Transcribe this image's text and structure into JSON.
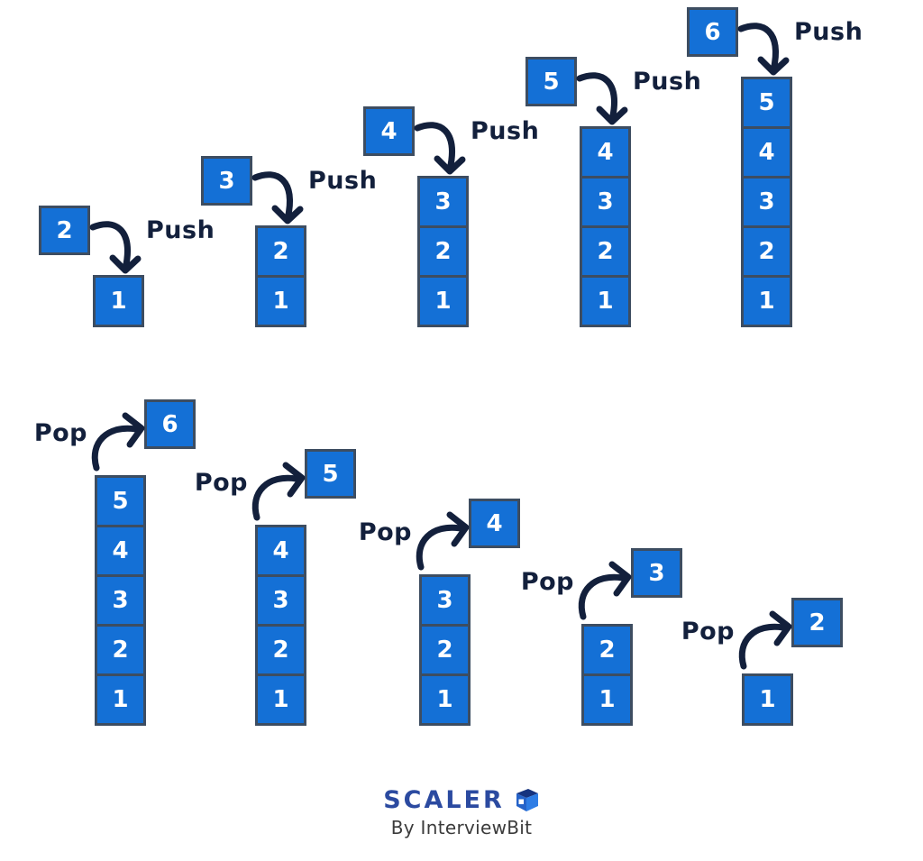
{
  "diagram_title": "stack-push-pop-operations",
  "colors": {
    "box_fill": "#1470d6",
    "box_border": "#3d4d61",
    "ink": "#13203c",
    "number_text": "#ffffff",
    "brand_blue": "#2b4aa0",
    "tagline_gray": "#3b3b3b",
    "cube_dark": "#16337e",
    "cube_bright": "#2e7de5",
    "cube_mid": "#2563c9"
  },
  "push_row": {
    "op_label": "Push",
    "groups": [
      {
        "moved": "2",
        "stack": [
          "1"
        ]
      },
      {
        "moved": "3",
        "stack": [
          "2",
          "1"
        ]
      },
      {
        "moved": "4",
        "stack": [
          "3",
          "2",
          "1"
        ]
      },
      {
        "moved": "5",
        "stack": [
          "4",
          "3",
          "2",
          "1"
        ]
      },
      {
        "moved": "6",
        "stack": [
          "5",
          "4",
          "3",
          "2",
          "1"
        ]
      }
    ]
  },
  "pop_row": {
    "op_label": "Pop",
    "groups": [
      {
        "moved": "6",
        "stack": [
          "5",
          "4",
          "3",
          "2",
          "1"
        ]
      },
      {
        "moved": "5",
        "stack": [
          "4",
          "3",
          "2",
          "1"
        ]
      },
      {
        "moved": "4",
        "stack": [
          "3",
          "2",
          "1"
        ]
      },
      {
        "moved": "3",
        "stack": [
          "2",
          "1"
        ]
      },
      {
        "moved": "2",
        "stack": [
          "1"
        ]
      }
    ]
  },
  "footer": {
    "brand": "SCALER",
    "tagline": "By InterviewBit",
    "cube_icon": "scaler-cube-icon"
  }
}
